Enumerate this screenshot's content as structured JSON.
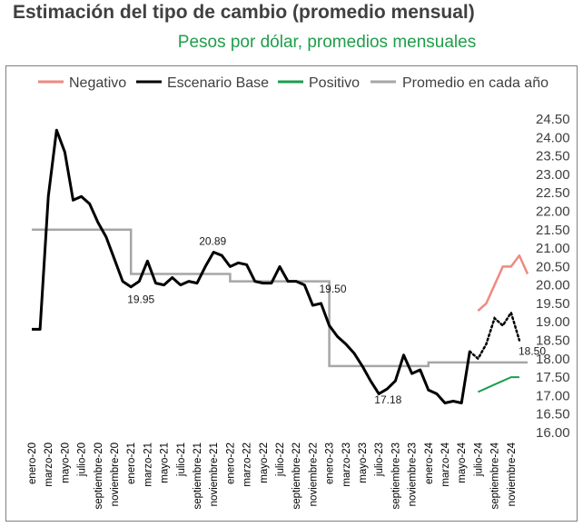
{
  "title": "Estimación del tipo de cambio (promedio mensual)",
  "subtitle": "Pesos por dólar, promedios mensuales",
  "colors": {
    "negativo": "#ee8a80",
    "base": "#000000",
    "positivo": "#1a9e4e",
    "promedio": "#a6a6a6",
    "subtitle": "#1e9e4a"
  },
  "chart_data": {
    "type": "line",
    "title": "Estimación del tipo de cambio (promedio mensual)",
    "subtitle": "Pesos por dólar, promedios mensuales",
    "ylim": [
      16.0,
      24.5
    ],
    "y_ticks": [
      "24.50",
      "24.00",
      "23.50",
      "23.00",
      "22.50",
      "22.00",
      "21.50",
      "21.00",
      "20.50",
      "20.00",
      "19.50",
      "19.00",
      "18.50",
      "18.00",
      "17.50",
      "17.00",
      "16.50",
      "16.00"
    ],
    "y_axis_position": "right",
    "legend_position": "top",
    "x_tick_labels": [
      "enero-20",
      "marzo-20",
      "mayo-20",
      "julio-20",
      "septiembre-20",
      "noviembre-20",
      "enero-21",
      "marzo-21",
      "mayo-21",
      "julio-21",
      "septiembre-21",
      "noviembre-21",
      "enero-22",
      "marzo-22",
      "mayo-22",
      "julio-22",
      "septiembre-22",
      "noviembre-22",
      "enero-23",
      "marzo-23",
      "mayo-23",
      "julio-23",
      "septiembre-23",
      "noviembre-23",
      "enero-24",
      "marzo-24",
      "mayo-24",
      "julio-24",
      "septiembre-24",
      "noviembre-24"
    ],
    "legend": [
      "Negativo",
      "Escenario Base",
      "Positivo",
      "Promedio en cada año"
    ],
    "series": [
      {
        "name": "Negativo",
        "x_start": 54,
        "values": [
          19.3,
          19.5,
          20.0,
          20.5,
          20.5,
          20.8,
          20.3
        ]
      },
      {
        "name": "Escenario Base",
        "x_start": 0,
        "values": [
          18.8,
          18.8,
          22.4,
          24.2,
          23.6,
          22.3,
          22.4,
          22.2,
          21.7,
          21.3,
          20.7,
          20.1,
          19.95,
          20.1,
          20.65,
          20.05,
          20.0,
          20.2,
          20.0,
          20.1,
          20.05,
          20.5,
          20.89,
          20.8,
          20.5,
          20.6,
          20.55,
          20.1,
          20.05,
          20.05,
          20.5,
          20.1,
          20.1,
          20.0,
          19.45,
          19.5,
          18.9,
          18.6,
          18.4,
          18.15,
          17.8,
          17.4,
          17.05,
          17.18,
          17.4,
          18.1,
          17.6,
          17.7,
          17.15,
          17.05,
          16.8,
          16.85,
          16.8,
          18.2
        ]
      },
      {
        "name": "Escenario Base (proyección)",
        "x_start": 53,
        "values": [
          18.2,
          18.0,
          18.4,
          19.1,
          18.9,
          19.25,
          18.5
        ]
      },
      {
        "name": "Positivo",
        "x_start": 54,
        "values": [
          17.1,
          17.2,
          17.3,
          17.4,
          17.5,
          17.5
        ]
      },
      {
        "name": "Promedio en cada año",
        "segments": [
          {
            "x_start": 0,
            "x_end": 12,
            "value": 21.5
          },
          {
            "x_start": 12,
            "x_end": 24,
            "value": 20.3
          },
          {
            "x_start": 24,
            "x_end": 36,
            "value": 20.1
          },
          {
            "x_start": 36,
            "x_end": 48,
            "value": 17.8
          },
          {
            "x_start": 48,
            "x_end": 60,
            "value": 17.9
          }
        ]
      }
    ],
    "annotations": [
      {
        "text": "19.95",
        "x": 12,
        "y": 19.95
      },
      {
        "text": "20.89",
        "x": 22,
        "y": 20.89
      },
      {
        "text": "19.50",
        "x": 35,
        "y": 19.5
      },
      {
        "text": "17.18",
        "x": 43,
        "y": 17.18
      },
      {
        "text": "18.50",
        "x": 60,
        "y": 18.5
      }
    ]
  }
}
